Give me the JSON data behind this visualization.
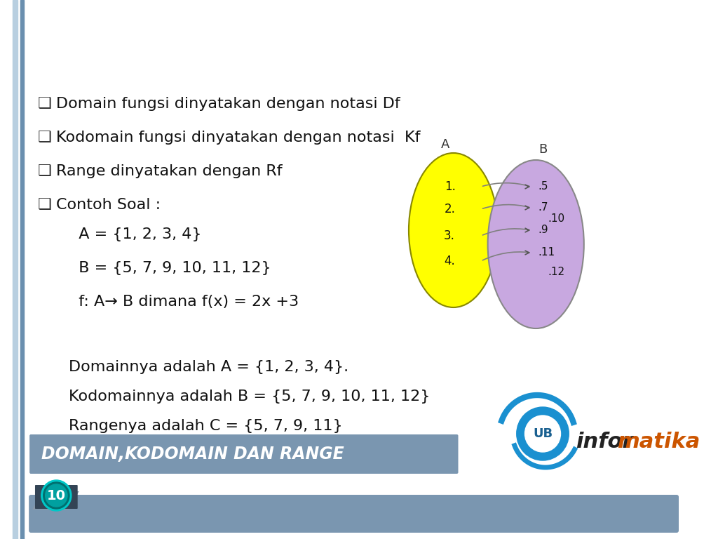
{
  "title": "DOMAIN,KODOMAIN DAN RANGE",
  "title_bg_color": "#7a96b0",
  "title_text_color": "#ffffff",
  "bg_color": "#ffffff",
  "left_bar_color1": "#b8cfe0",
  "left_bar_color2": "#6a8faf",
  "bottom_bar_color": "#7a96b0",
  "bullet_lines": [
    "Domain fungsi dinyatakan dengan notasi Df",
    "Kodomain fungsi dinyatakan dengan notasi  Kf",
    "Range dinyatakan dengan Rf",
    "Contoh Soal :"
  ],
  "indent_lines": [
    "  A = {1, 2, 3, 4}",
    "  B = {5, 7, 9, 10, 11, 12}",
    "  f: A→ B dimana f(x) = 2x +3"
  ],
  "bottom_lines": [
    "Domainnya adalah A = {1, 2, 3, 4}.",
    "Kodomainnya adalah B = {5, 7, 9, 10, 11, 12}",
    "Rangenya adalah C = {5, 7, 9, 11}"
  ],
  "page_number": "10",
  "ellipse_A_color": "#ffff00",
  "ellipse_B_color": "#c8a8e0",
  "set_A": [
    "1.",
    "2.",
    "3.",
    "4."
  ],
  "set_B_arrow": [
    ".5",
    ".7",
    ".9",
    ".11"
  ],
  "set_B_plain": [
    ".10",
    ".12"
  ],
  "arrow_color": "#808080",
  "infor_color": "#cc5500",
  "logo_color": "#1a90d0"
}
